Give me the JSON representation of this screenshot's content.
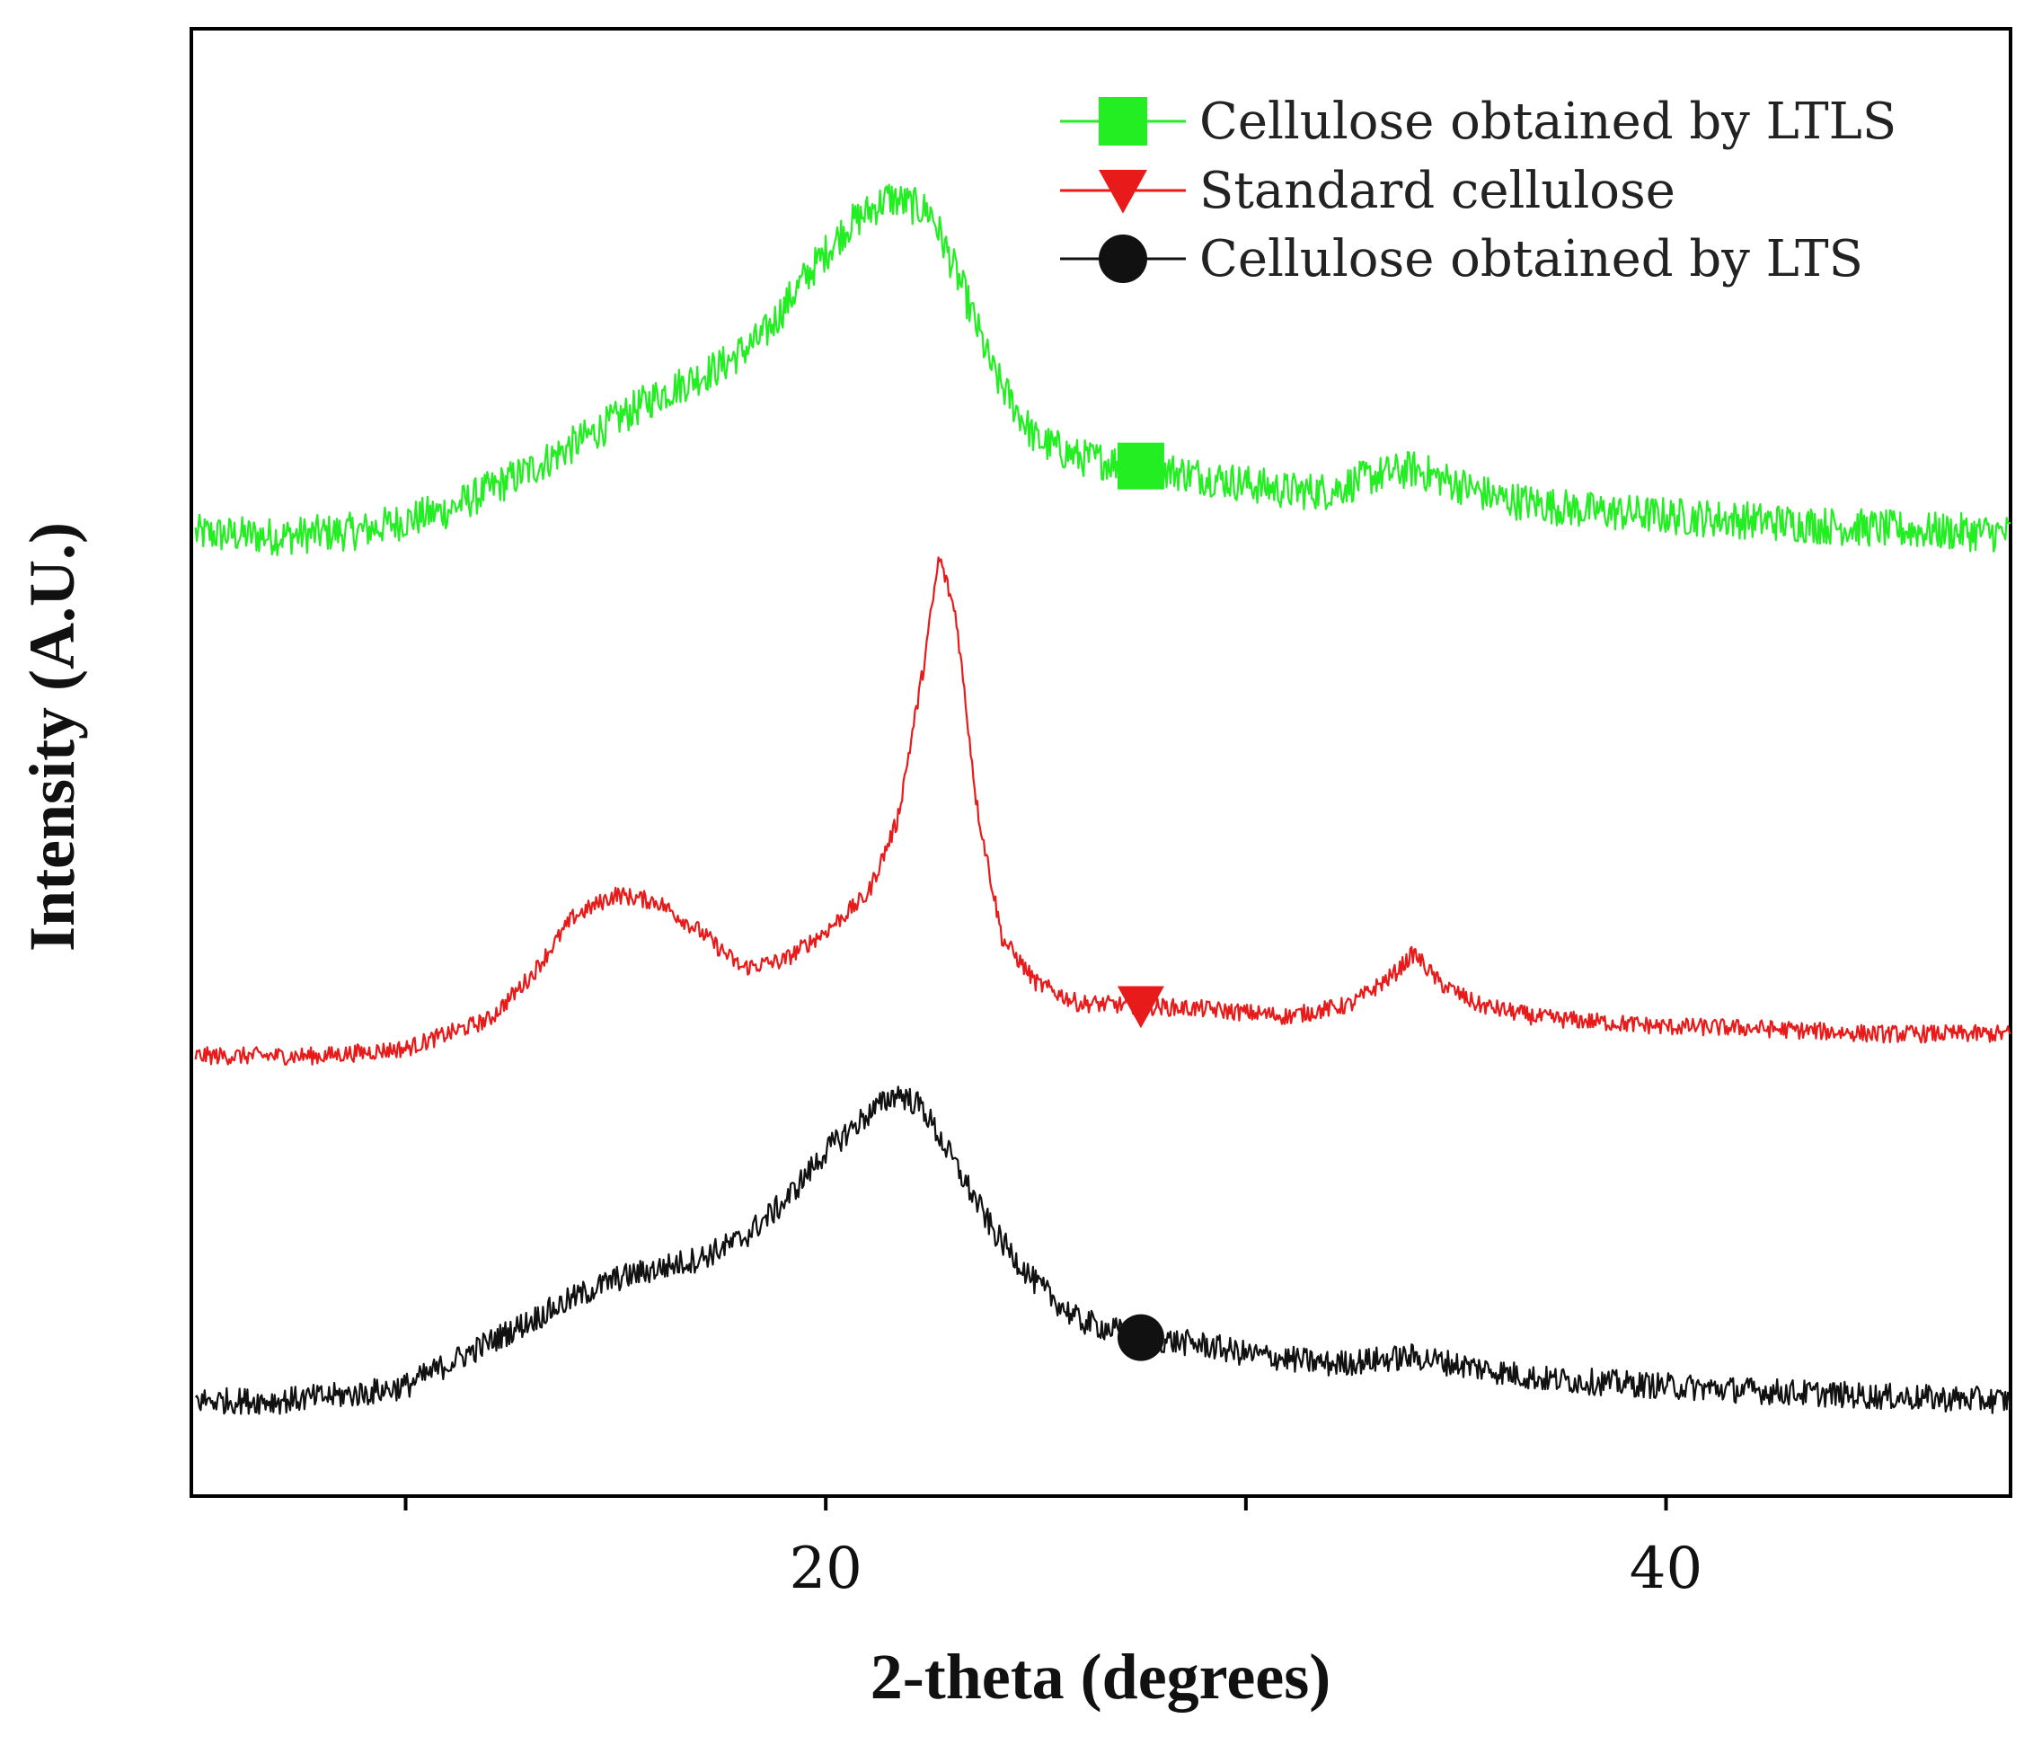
{
  "chart_data": {
    "type": "line",
    "title": "",
    "xlabel": "2-theta (degrees)",
    "ylabel": "Intensity (A.U.)",
    "xlim": [
      4.9,
      48.2
    ],
    "ylim": [
      0,
      100
    ],
    "x_ticks": [
      10,
      20,
      30,
      40
    ],
    "x_tick_labels": [
      "",
      "20",
      "",
      "40"
    ],
    "y_ticks_shown": false,
    "grid": false,
    "legend_position": "top-right",
    "series": [
      {
        "name": "Cellulose obtained by LTLS",
        "color": "#22ee22",
        "marker": "square",
        "marker_x": 27.5,
        "noise": 1.3,
        "points": [
          [
            5,
            65.6
          ],
          [
            7,
            65.4
          ],
          [
            9,
            65.8
          ],
          [
            11,
            67.2
          ],
          [
            13,
            70.0
          ],
          [
            14.5,
            72.5
          ],
          [
            16,
            75.0
          ],
          [
            17.5,
            77.0
          ],
          [
            18.5,
            79.0
          ],
          [
            19.5,
            83.0
          ],
          [
            20.5,
            86.5
          ],
          [
            21.5,
            88.5
          ],
          [
            22.5,
            87.5
          ],
          [
            23.3,
            82.0
          ],
          [
            24,
            76.5
          ],
          [
            25,
            72.0
          ],
          [
            26,
            70.8
          ],
          [
            27.5,
            70.2
          ],
          [
            29,
            69.5
          ],
          [
            30,
            69.0
          ],
          [
            31,
            68.5
          ],
          [
            32,
            68.5
          ],
          [
            33,
            69.5
          ],
          [
            34,
            70.0
          ],
          [
            35,
            69.0
          ],
          [
            36,
            68.0
          ],
          [
            38,
            67.2
          ],
          [
            40,
            66.8
          ],
          [
            42,
            66.5
          ],
          [
            44,
            66.1
          ],
          [
            46,
            65.8
          ],
          [
            48.2,
            65.6
          ]
        ]
      },
      {
        "name": "Standard cellulose",
        "color": "#e81a1a",
        "marker": "triangle-down",
        "marker_x": 27.5,
        "noise": 0.6,
        "points": [
          [
            5,
            30.0
          ],
          [
            8,
            30.0
          ],
          [
            10,
            30.5
          ],
          [
            12,
            32.5
          ],
          [
            13,
            35.5
          ],
          [
            14,
            39.5
          ],
          [
            15,
            41.0
          ],
          [
            16,
            40.5
          ],
          [
            17,
            38.5
          ],
          [
            18,
            36.0
          ],
          [
            19,
            36.5
          ],
          [
            20,
            38.5
          ],
          [
            21,
            41.0
          ],
          [
            21.7,
            46.0
          ],
          [
            22.3,
            56.0
          ],
          [
            22.7,
            64.0
          ],
          [
            23.1,
            60.0
          ],
          [
            23.6,
            47.0
          ],
          [
            24.2,
            38.0
          ],
          [
            25,
            35.0
          ],
          [
            26,
            33.6
          ],
          [
            27.5,
            33.4
          ],
          [
            29,
            33.2
          ],
          [
            31,
            32.7
          ],
          [
            32.5,
            33.5
          ],
          [
            33.5,
            35.5
          ],
          [
            34,
            37.0
          ],
          [
            34.6,
            35.0
          ],
          [
            35.5,
            33.5
          ],
          [
            37,
            32.6
          ],
          [
            40,
            32.0
          ],
          [
            42,
            31.9
          ],
          [
            45,
            31.5
          ],
          [
            48.2,
            31.5
          ]
        ]
      },
      {
        "name": "Cellulose obtained by LTS",
        "color": "#111111",
        "marker": "circle",
        "marker_x": 27.5,
        "noise": 0.9,
        "points": [
          [
            5,
            6.5
          ],
          [
            7,
            6.5
          ],
          [
            9,
            7.0
          ],
          [
            10,
            7.5
          ],
          [
            11,
            9.0
          ],
          [
            12,
            10.5
          ],
          [
            13,
            12.0
          ],
          [
            14,
            13.5
          ],
          [
            15,
            14.8
          ],
          [
            16,
            15.5
          ],
          [
            17,
            16.2
          ],
          [
            18,
            17.5
          ],
          [
            19,
            20.0
          ],
          [
            20,
            23.5
          ],
          [
            21,
            26.0
          ],
          [
            21.7,
            27.5
          ],
          [
            22.3,
            26.5
          ],
          [
            23,
            23.0
          ],
          [
            24,
            18.0
          ],
          [
            25,
            14.5
          ],
          [
            26,
            12.0
          ],
          [
            27.5,
            10.8
          ],
          [
            29,
            10.3
          ],
          [
            30,
            9.7
          ],
          [
            32,
            9.0
          ],
          [
            34,
            9.5
          ],
          [
            35,
            9.0
          ],
          [
            37,
            8.0
          ],
          [
            40,
            7.5
          ],
          [
            42,
            7.2
          ],
          [
            45,
            6.8
          ],
          [
            48.2,
            6.5
          ]
        ]
      }
    ]
  }
}
